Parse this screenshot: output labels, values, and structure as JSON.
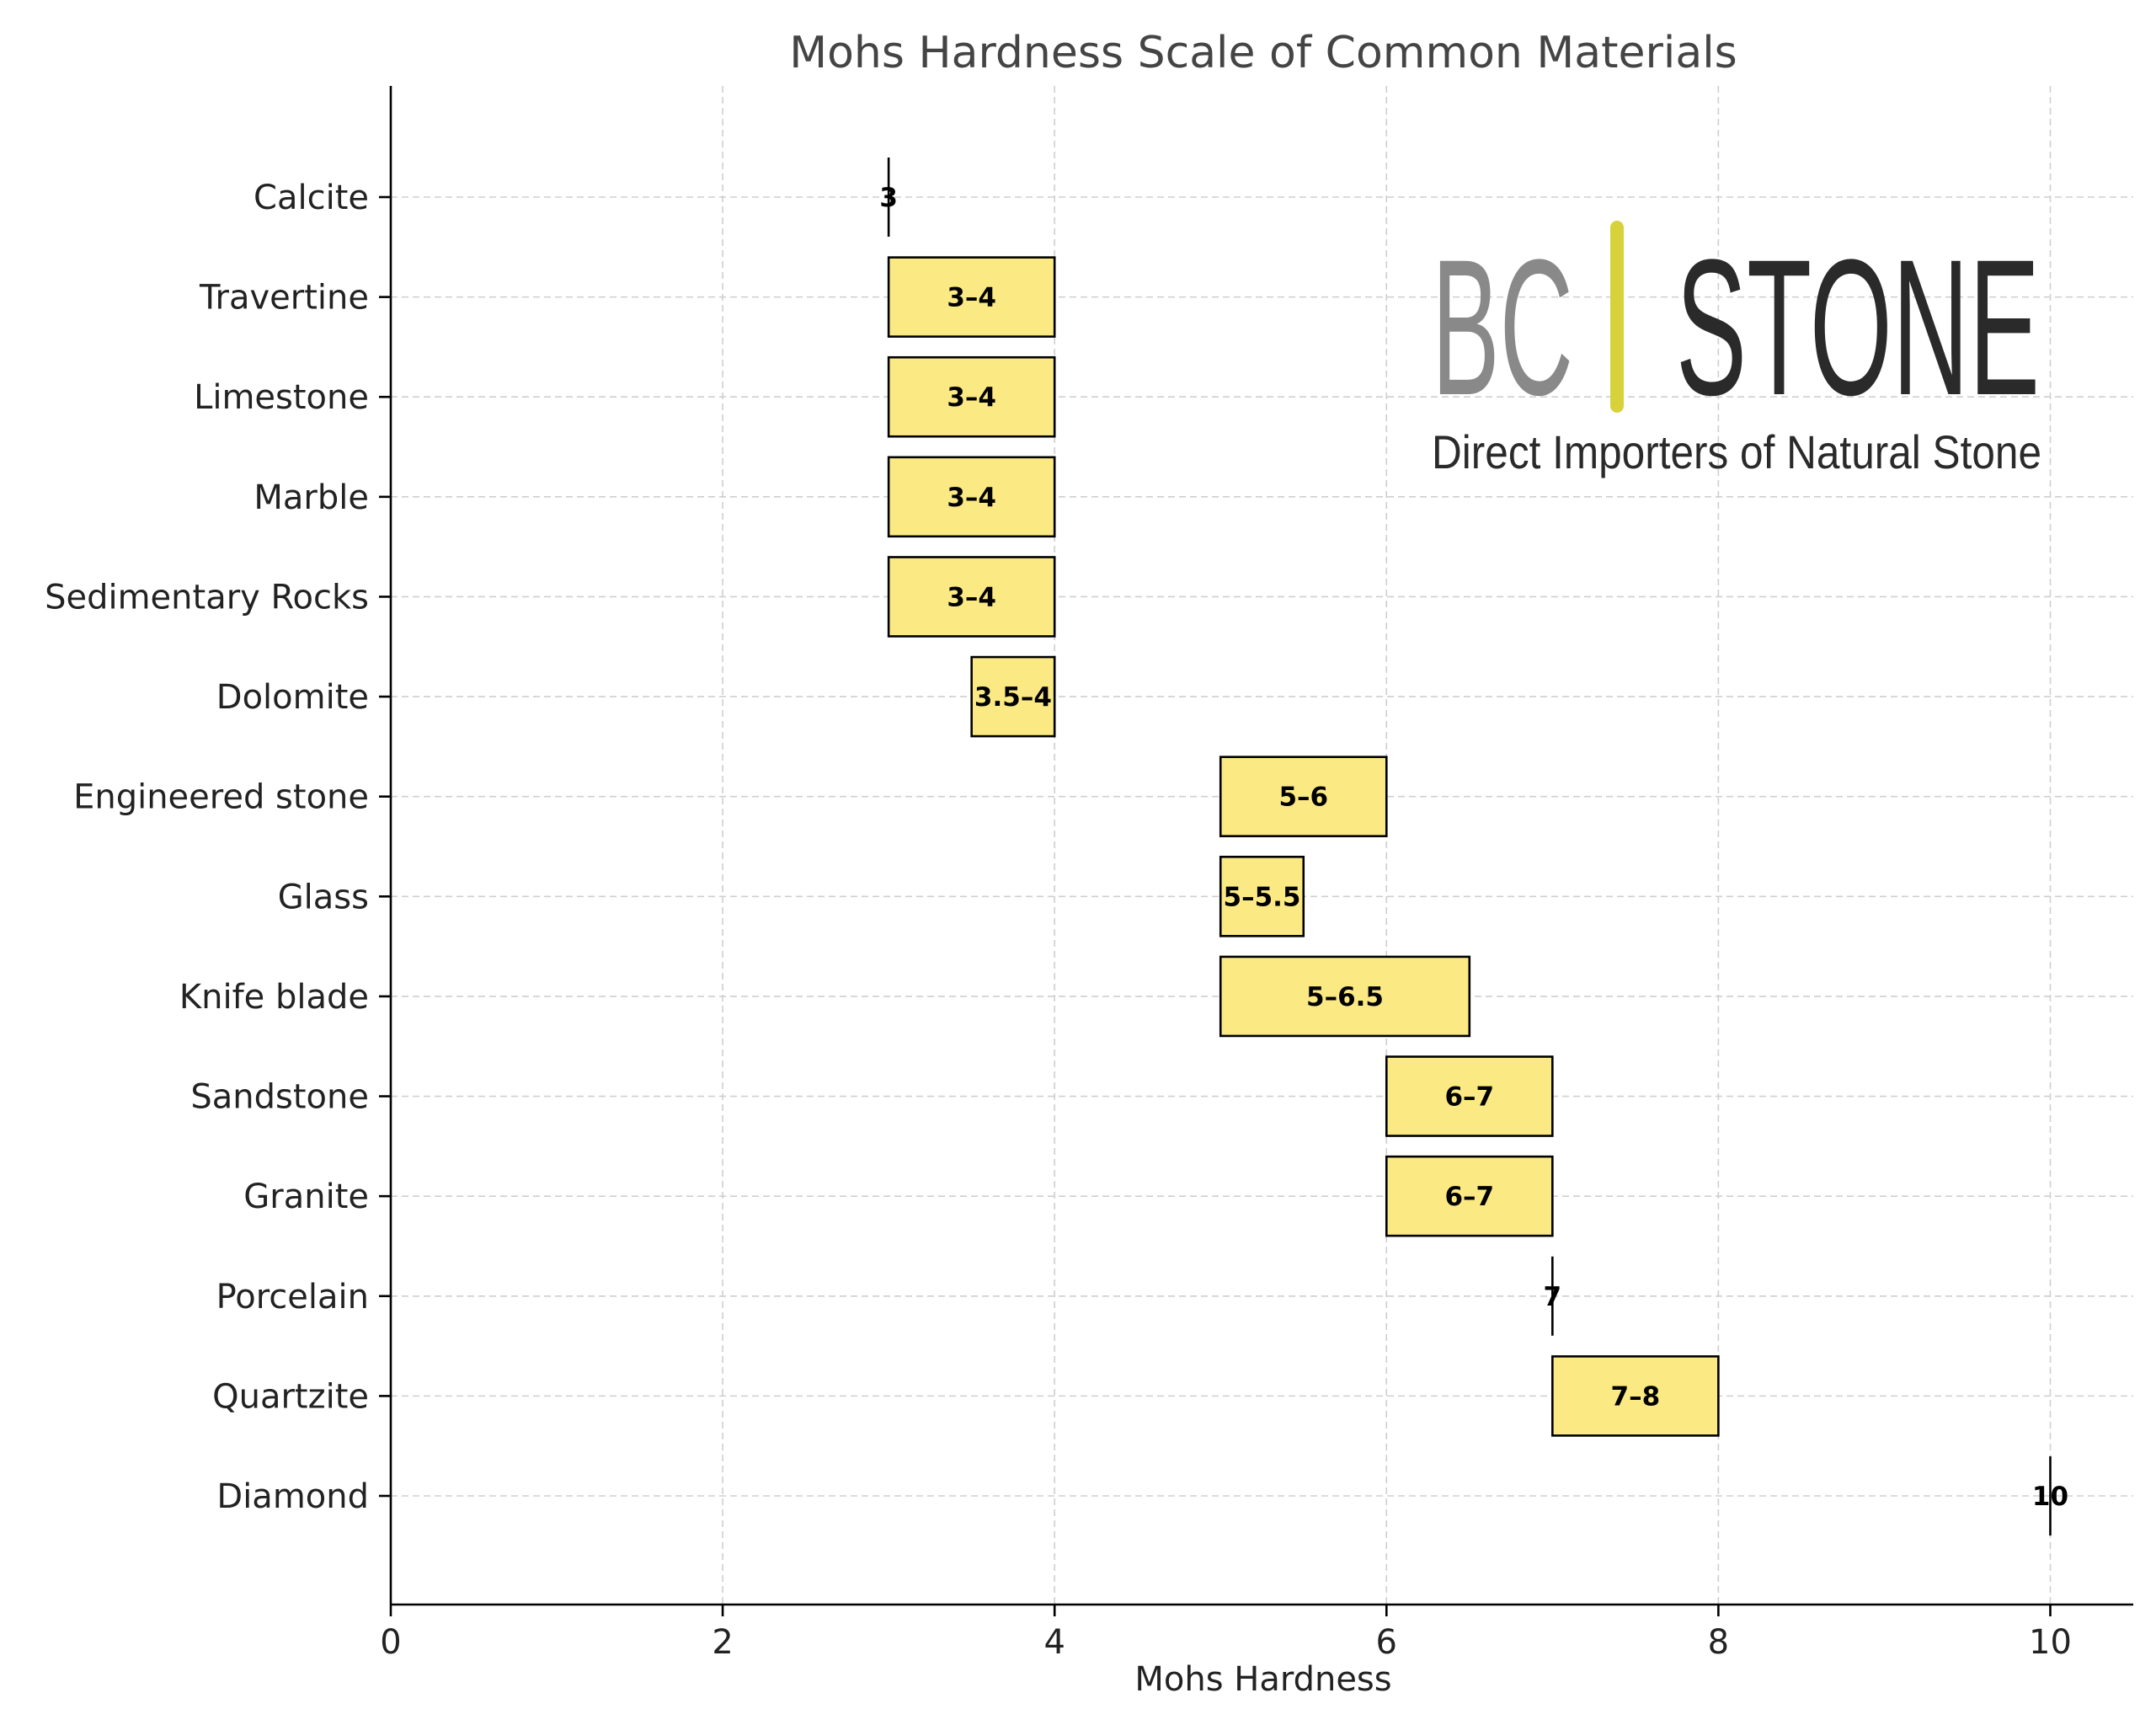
{
  "chart_data": {
    "type": "bar",
    "orientation": "horizontal-range",
    "title": "Mohs Hardness Scale of Common Materials",
    "xlabel": "Mohs Hardness",
    "ylabel": "",
    "xlim": [
      0,
      10.5
    ],
    "xticks": [
      0,
      2,
      4,
      6,
      8,
      10
    ],
    "grid": true,
    "bar_color": "#fbe983",
    "categories": [
      "Calcite",
      "Travertine",
      "Limestone",
      "Marble",
      "Sedimentary Rocks",
      "Dolomite",
      "Engineered stone",
      "Glass",
      "Knife blade",
      "Sandstone",
      "Granite",
      "Porcelain",
      "Quartzite",
      "Diamond"
    ],
    "ranges": [
      [
        3,
        3
      ],
      [
        3,
        4
      ],
      [
        3,
        4
      ],
      [
        3,
        4
      ],
      [
        3,
        4
      ],
      [
        3.5,
        4
      ],
      [
        5,
        6
      ],
      [
        5,
        5.5
      ],
      [
        5,
        6.5
      ],
      [
        6,
        7
      ],
      [
        6,
        7
      ],
      [
        7,
        7
      ],
      [
        7,
        8
      ],
      [
        10,
        10
      ]
    ],
    "labels": [
      "3",
      "3–4",
      "3–4",
      "3–4",
      "3–4",
      "3.5–4",
      "5–6",
      "5–5.5",
      "5–6.5",
      "6–7",
      "6–7",
      "7",
      "7–8",
      "10"
    ]
  },
  "logo": {
    "bc": "BC",
    "stone": "STONE",
    "tagline": "Direct Importers of Natural Stone",
    "divider_color": "#d8d23a"
  }
}
